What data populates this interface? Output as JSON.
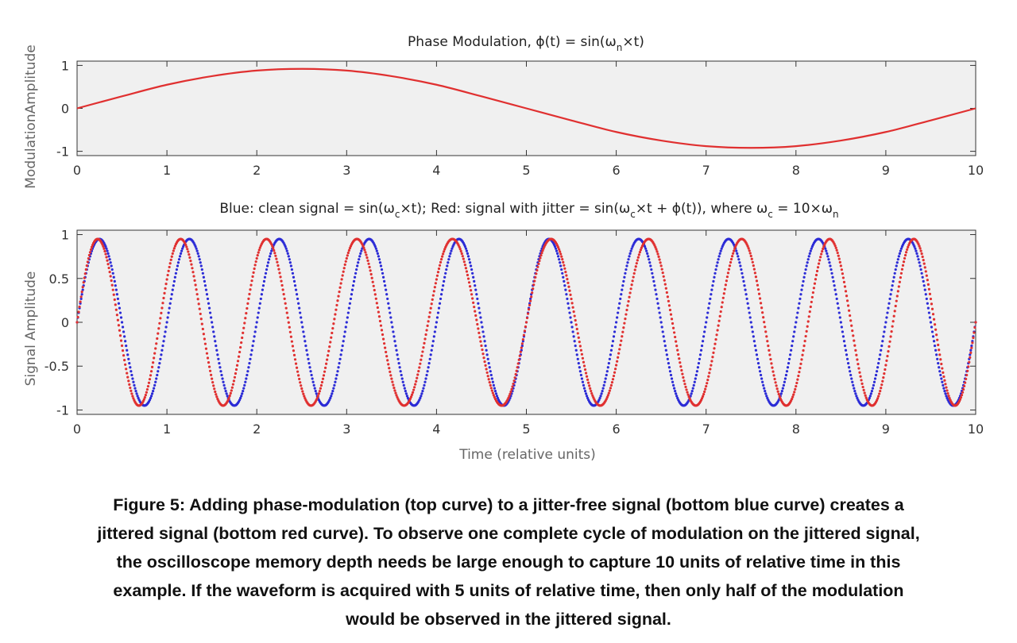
{
  "chart_data": [
    {
      "type": "line",
      "title": "Phase Modulation, ϕ(t) = sin(ω",
      "title_sub": "n",
      "title_tail": "×t)",
      "ylabel": "ModulationAmplitude",
      "xlabel": "",
      "xlim": [
        0,
        10
      ],
      "ylim": [
        -1.1,
        1.1
      ],
      "xticks": [
        "0",
        "1",
        "2",
        "3",
        "4",
        "5",
        "6",
        "7",
        "8",
        "9",
        "10"
      ],
      "yticks": [
        {
          "value": 1,
          "label": "1"
        },
        {
          "value": 0,
          "label": "0"
        },
        {
          "value": -1,
          "label": "-1"
        }
      ],
      "grid": false,
      "background": "#f0f0f0",
      "series": [
        {
          "color": "#e03030",
          "style": "solid",
          "x": [
            0,
            0.5,
            1,
            1.5,
            2,
            2.5,
            3,
            3.5,
            4,
            4.5,
            5,
            5.5,
            6,
            6.5,
            7,
            7.5,
            8,
            8.5,
            9,
            9.5,
            10
          ],
          "y": [
            0,
            0.28,
            0.55,
            0.75,
            0.88,
            0.92,
            0.88,
            0.75,
            0.55,
            0.28,
            0,
            -0.28,
            -0.55,
            -0.75,
            -0.88,
            -0.92,
            -0.88,
            -0.75,
            -0.55,
            -0.28,
            0
          ]
        }
      ]
    },
    {
      "type": "line",
      "title": "Blue: clean signal = sin(ω",
      "title_sub": "c",
      "title_mid": "×t); Red: signal with jitter = sin(ω",
      "title_sub2": "c",
      "title_mid2": "×t + ϕ(t)), where ω",
      "title_sub3": "c",
      "title_mid3": " = 10×ω",
      "title_sub4": "n",
      "ylabel": "Signal Amplitude",
      "xlabel": "Time (relative units)",
      "xlim": [
        0,
        10
      ],
      "ylim": [
        -1.05,
        1.05
      ],
      "xticks": [
        "0",
        "1",
        "2",
        "3",
        "4",
        "5",
        "6",
        "7",
        "8",
        "9",
        "10"
      ],
      "yticks": [
        {
          "value": 1,
          "label": "1"
        },
        {
          "value": 0.5,
          "label": "0.5"
        },
        {
          "value": 0,
          "label": "0"
        },
        {
          "value": -0.5,
          "label": "-0.5"
        },
        {
          "value": -1,
          "label": "-1"
        }
      ],
      "grid": false,
      "background": "#f0f0f0",
      "series": [
        {
          "color": "#2b2bd6",
          "style": "dotted",
          "function": "0.95*sin(2*pi*t)",
          "x_range": [
            0,
            10
          ],
          "peaks_t": [
            0.25,
            1.25,
            2.25,
            3.25,
            4.25,
            5.25,
            6.25,
            7.25,
            8.25,
            9.25
          ],
          "troughs_t": [
            0.75,
            1.75,
            2.75,
            3.75,
            4.75,
            5.75,
            6.75,
            7.75,
            8.75,
            9.75
          ],
          "amplitude": 0.95
        },
        {
          "color": "#e03030",
          "style": "dotted",
          "function": "0.95*sin(2*pi*t + 0.92*sin(0.2*pi*t))",
          "x_range": [
            0,
            10
          ],
          "peaks_t": [
            0.2,
            1.1,
            2.05,
            3.05,
            4.1,
            5.25,
            6.4,
            7.45,
            8.45,
            9.45
          ],
          "troughs_t": [
            0.65,
            1.55,
            2.55,
            3.6,
            4.75,
            5.95,
            7.0,
            8.0,
            9.0,
            9.95
          ],
          "amplitude": 0.95
        }
      ]
    }
  ],
  "caption": {
    "lines": [
      "Figure 5: Adding phase-modulation (top curve) to a jitter-free signal (bottom blue curve) creates a",
      "jittered signal (bottom red curve). To observe one complete cycle of modulation on the jittered signal,",
      "the oscilloscope memory depth needs be large enough to capture 10 units of relative time in this",
      "example. If the waveform is acquired with 5 units of relative time, then only half of the modulation",
      "would be observed in the jittered signal."
    ]
  }
}
